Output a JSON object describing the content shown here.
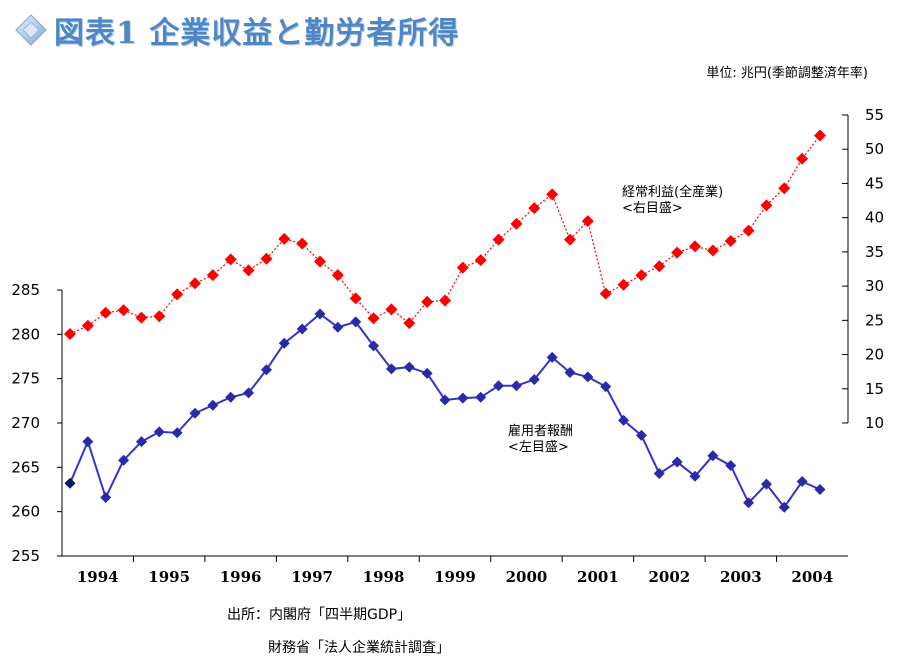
{
  "header": {
    "title": "図表1 企業収益と勤労者所得",
    "unit": "単位: 兆円(季節調整済年率)"
  },
  "source": {
    "line1": "出所：内閣府「四半期GDP」",
    "line2": "財務省「法人企業統計調査」"
  },
  "colors": {
    "title": "#4f86c6",
    "profits": "#ff0000",
    "compensation": "#2a2aa8",
    "compensation_line": "#3333cc",
    "first_point": "#0a1a66"
  },
  "chart_data": {
    "type": "line",
    "x_labels": [
      "1994",
      "1995",
      "1996",
      "1997",
      "1998",
      "1999",
      "2000",
      "2001",
      "2002",
      "2003",
      "2004"
    ],
    "left_axis": {
      "min": 255,
      "max": 285,
      "ticks": [
        255,
        260,
        265,
        270,
        275,
        280,
        285
      ]
    },
    "right_axis": {
      "min": 10,
      "max": 55,
      "ticks": [
        10,
        15,
        20,
        25,
        30,
        35,
        40,
        45,
        50,
        55
      ]
    },
    "series": [
      {
        "name": "経常利益(全産業)\n<右目盛>",
        "axis": "right",
        "marker": "diamond",
        "values": [
          23.0,
          24.2,
          26.1,
          26.5,
          25.4,
          25.6,
          28.8,
          30.4,
          31.6,
          33.9,
          32.3,
          34.0,
          36.9,
          36.2,
          33.6,
          31.6,
          28.2,
          25.3,
          26.6,
          24.6,
          27.7,
          27.9,
          32.7,
          33.8,
          36.8,
          39.1,
          41.4,
          43.4,
          36.8,
          39.5,
          28.9,
          30.2,
          31.6,
          32.9,
          34.9,
          35.8,
          35.2,
          36.6,
          38.1,
          41.8,
          44.3,
          48.6,
          52.0
        ]
      },
      {
        "name": "雇用者報酬\n<左目盛>",
        "axis": "left",
        "marker": "diamond",
        "values": [
          263.2,
          267.9,
          261.6,
          265.8,
          267.9,
          269.0,
          268.9,
          271.1,
          272.0,
          272.9,
          273.4,
          276.0,
          279.0,
          280.6,
          282.3,
          280.8,
          281.4,
          278.7,
          276.1,
          276.3,
          275.6,
          272.6,
          272.8,
          272.9,
          274.2,
          274.2,
          274.9,
          277.4,
          275.7,
          275.2,
          274.1,
          270.3,
          268.6,
          264.3,
          265.6,
          264.0,
          266.3,
          265.2,
          261.0,
          263.1,
          260.5,
          263.4,
          262.5
        ]
      }
    ]
  }
}
